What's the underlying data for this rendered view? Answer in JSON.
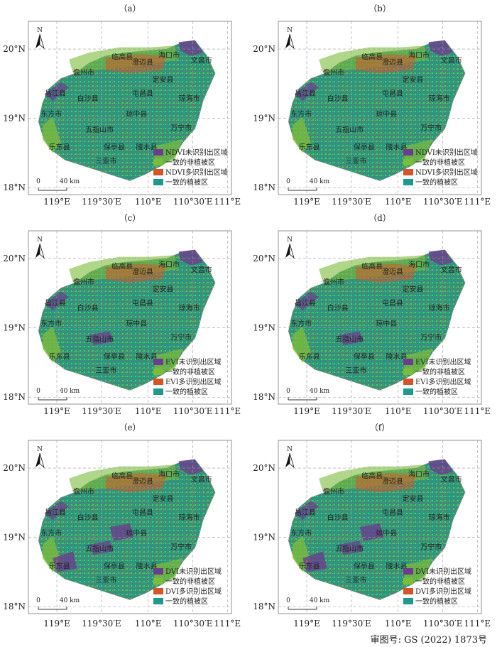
{
  "panels": [
    {
      "label": "（a）",
      "legend": [
        "NDVI未识别出区域",
        "一致的非植被区",
        "NDVI多识别出区域",
        "一致的植被区"
      ]
    },
    {
      "label": "（b）",
      "legend": [
        "NDVI未识别出区域",
        "一致的非植被区",
        "NDVI多识别出区域",
        "一致的植被区"
      ]
    },
    {
      "label": "（c）",
      "legend": [
        "EVI未识别出区域",
        "一致的非植被区",
        "EVI多识别出区域",
        "一致的植被区"
      ]
    },
    {
      "label": "（d）",
      "legend": [
        "EVI未识别出区域",
        "一致的非植被区",
        "EVI多识别出区域",
        "一致的植被区"
      ]
    },
    {
      "label": "（e）",
      "legend": [
        "DVI未识别出区域",
        "一致的非植被区",
        "DVI多识别出区域",
        "一致的植被区"
      ]
    },
    {
      "label": "（f）",
      "legend": [
        "DVI未识别出区域",
        "一致的非植被区",
        "DVI多识别出区域",
        "一致的植被区"
      ]
    }
  ],
  "legend_colors": [
    "#6a3d8f",
    "#7cbc3b",
    "#d4552a",
    "#1f9a8a"
  ],
  "lat_labels": [
    "20°N",
    "19°N",
    "18°N"
  ],
  "lon_labels": [
    "119°E",
    "119°30′E",
    "110°E",
    "110°30′E",
    "111°E"
  ],
  "north_label": "N",
  "scale_labels": [
    "0",
    "40 km"
  ],
  "places": [
    "临高县",
    "海口市",
    "澄迈县",
    "文昌市",
    "儋州市",
    "定安县",
    "昌江县",
    "白沙县",
    "屯昌县",
    "琼海市",
    "东方市",
    "琼中县",
    "五指山市",
    "万宁市",
    "乐东县",
    "保亭县",
    "陵水县",
    "三亚市"
  ],
  "approval": "审图号: GS (2022) 1873号"
}
